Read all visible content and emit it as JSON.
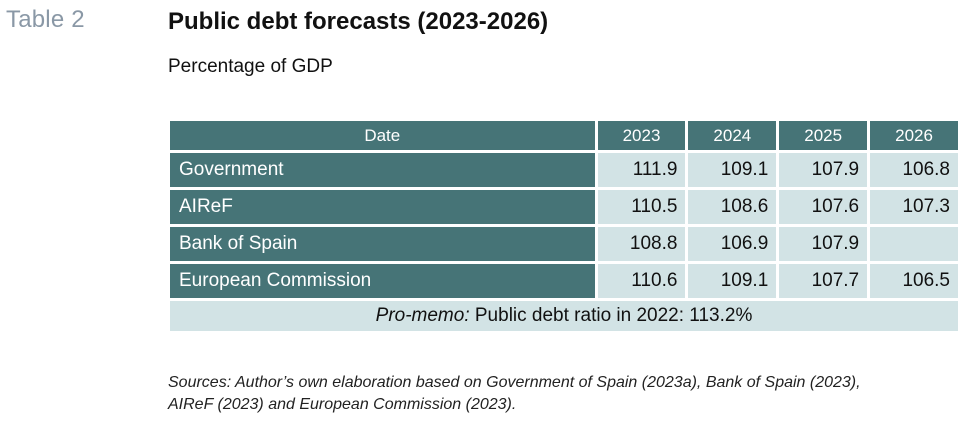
{
  "table_number": "Table 2",
  "title": "Public debt forecasts (2023-2026)",
  "subtitle": "Percentage of GDP",
  "table": {
    "header": {
      "label": "Date",
      "years": [
        "2023",
        "2024",
        "2025",
        "2026"
      ]
    },
    "rows": [
      {
        "label": "Government",
        "values": [
          "111.9",
          "109.1",
          "107.9",
          "106.8"
        ]
      },
      {
        "label": "AIReF",
        "values": [
          "110.5",
          "108.6",
          "107.6",
          "107.3"
        ]
      },
      {
        "label": "Bank of Spain",
        "values": [
          "108.8",
          "106.9",
          "107.9",
          ""
        ]
      },
      {
        "label": "European Commission",
        "values": [
          "110.6",
          "109.1",
          "107.7",
          "106.5"
        ]
      }
    ],
    "memo": {
      "label": "Pro-memo:",
      "text": " Public debt ratio in 2022: 113.2%"
    }
  },
  "sources": {
    "line1": "Sources: Author’s own elaboration based on Government of Spain (2023a), Bank of Spain (2023),",
    "line2": "AIReF (2023) and European Commission (2023)."
  }
}
